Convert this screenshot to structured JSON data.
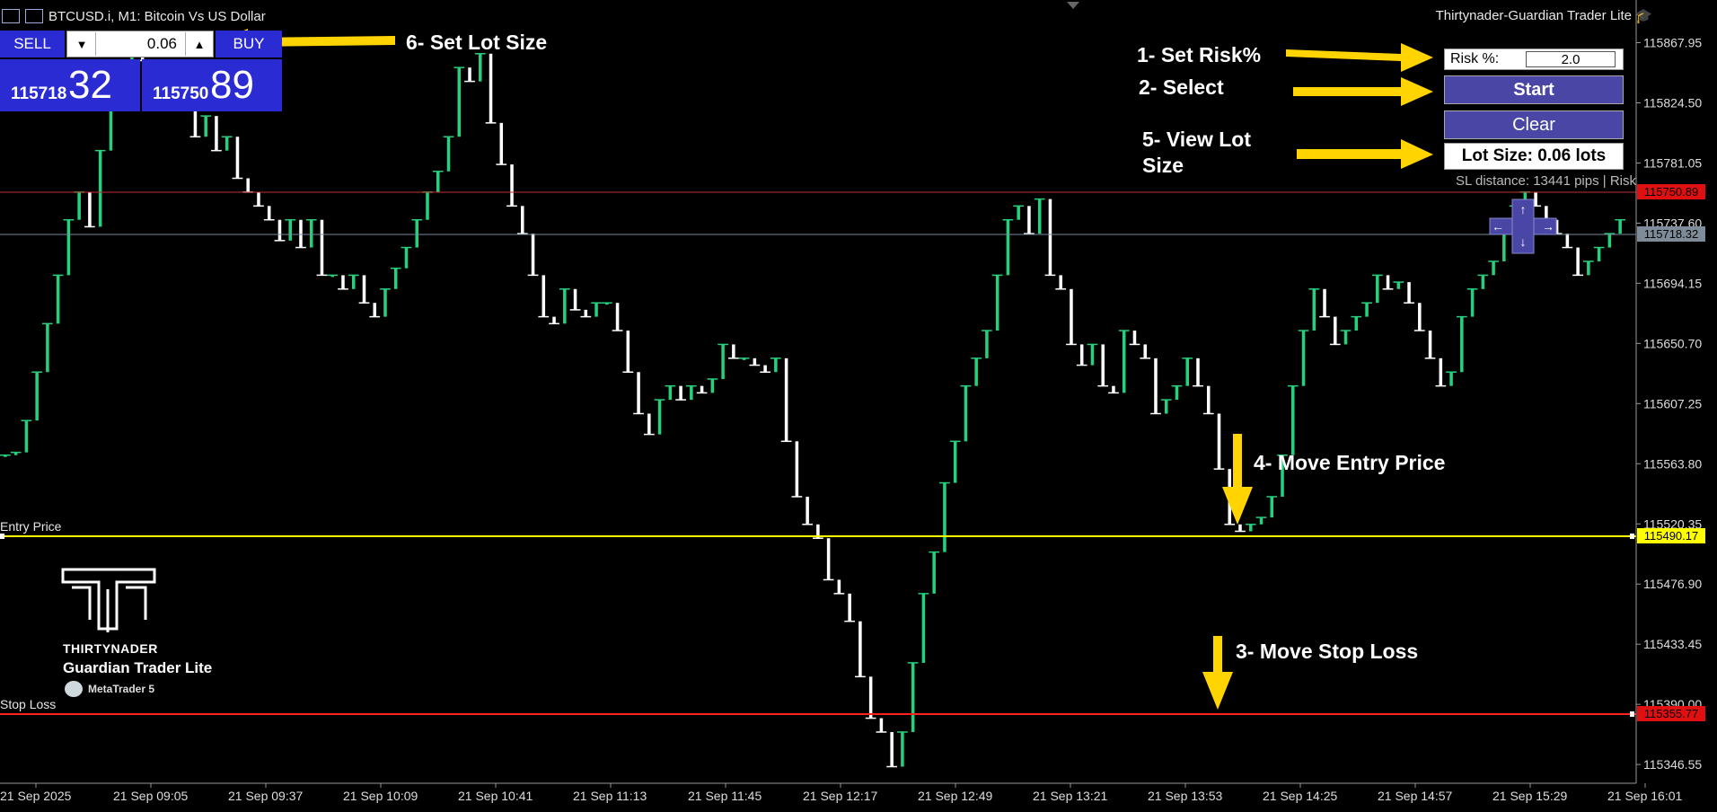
{
  "header": {
    "symbol_title": "BTCUSD.i, M1:  Bitcoin Vs US Dollar",
    "panel_title": "Thirtynader-Guardian Trader Lite"
  },
  "trade_panel": {
    "sell_label": "SELL",
    "buy_label": "BUY",
    "lot_value": "0.06",
    "sell_price_small": "115718",
    "sell_price_big": "32",
    "buy_price_small": "115750",
    "buy_price_big": "89"
  },
  "risk_panel": {
    "risk_label": "Risk %:",
    "risk_value": "2.0",
    "start_label": "Start",
    "clear_label": "Clear",
    "lot_size_text": "Lot Size: 0.06 lots",
    "sl_distance_text": "SL distance: 13441 pips | Risk"
  },
  "annotations": {
    "a1": "1- Set Risk%",
    "a2": "2- Select",
    "a3": "3- Move Stop Loss",
    "a4": "4- Move Entry Price",
    "a5_line1": "5- View Lot",
    "a5_line2": "Size",
    "a6": "6- Set Lot Size"
  },
  "lines": {
    "entry_label": "Entry Price",
    "stop_label": "Stop Loss"
  },
  "logo": {
    "brand": "THIRTYNADER",
    "product": "Guardian Trader Lite",
    "platform": "MetaTrader 5"
  },
  "colors": {
    "background": "#000000",
    "bull": "#26d07c",
    "bear": "#ffffff",
    "entry_line": "#ffff00",
    "sl_line": "#ff2020",
    "panel_blue": "#2b2bd4",
    "annotation_arrow": "#ffd400"
  },
  "chart_data": {
    "type": "candlestick",
    "symbol": "BTCUSD.i",
    "timeframe": "M1",
    "price_axis": [
      "115867.95",
      "115824.50",
      "115781.05",
      "115737.60",
      "115694.15",
      "115650.70",
      "115607.25",
      "115563.80",
      "115520.35",
      "115476.90",
      "115433.45",
      "115390.00",
      "115346.55"
    ],
    "time_axis": [
      "21 Sep 2025",
      "21 Sep 09:05",
      "21 Sep 09:37",
      "21 Sep 10:09",
      "21 Sep 10:41",
      "21 Sep 11:13",
      "21 Sep 11:45",
      "21 Sep 12:17",
      "21 Sep 12:49",
      "21 Sep 13:21",
      "21 Sep 13:53",
      "21 Sep 14:25",
      "21 Sep 14:57",
      "21 Sep 15:29",
      "21 Sep 16:01"
    ],
    "ylim": [
      115333.0,
      115891.0
    ],
    "ask_price": "115750.89",
    "bid_price": "115718.32",
    "entry_price": "115490.17",
    "stop_loss_price": "115355.77",
    "close_path": [
      115570,
      115572,
      115595,
      115630,
      115665,
      115700,
      115740,
      115760,
      115735,
      115790,
      115820,
      115845,
      115860,
      115855,
      115835,
      115830,
      115828,
      115820,
      115800,
      115815,
      115790,
      115800,
      115770,
      115760,
      115750,
      115740,
      115725,
      115740,
      115720,
      115740,
      115700,
      115700,
      115690,
      115700,
      115680,
      115670,
      115690,
      115705,
      115720,
      115740,
      115760,
      115775,
      115800,
      115850,
      115840,
      115860,
      115810,
      115780,
      115750,
      115730,
      115700,
      115670,
      115665,
      115690,
      115675,
      115670,
      115680,
      115680,
      115660,
      115630,
      115600,
      115585,
      115610,
      115620,
      115610,
      115620,
      115615,
      115625,
      115650,
      115640,
      115640,
      115635,
      115630,
      115640,
      115580,
      115540,
      115520,
      115510,
      115480,
      115470,
      115450,
      115410,
      115380,
      115370,
      115345,
      115370,
      115420,
      115470,
      115500,
      115550,
      115580,
      115620,
      115640,
      115660,
      115700,
      115740,
      115750,
      115730,
      115755,
      115700,
      115690,
      115650,
      115635,
      115650,
      115620,
      115615,
      115660,
      115650,
      115640,
      115600,
      115610,
      115620,
      115640,
      115620,
      115600,
      115560,
      115520,
      115515,
      115520,
      115525,
      115540,
      115570,
      115620,
      115660,
      115690,
      115670,
      115650,
      115660,
      115670,
      115680,
      115700,
      115690,
      115695,
      115680,
      115660,
      115640,
      115620,
      115630,
      115670,
      115690,
      115700,
      115710,
      115740,
      115750,
      115760,
      115750,
      115740,
      115730,
      115720,
      115700,
      115710,
      115720,
      115730,
      115740
    ]
  }
}
